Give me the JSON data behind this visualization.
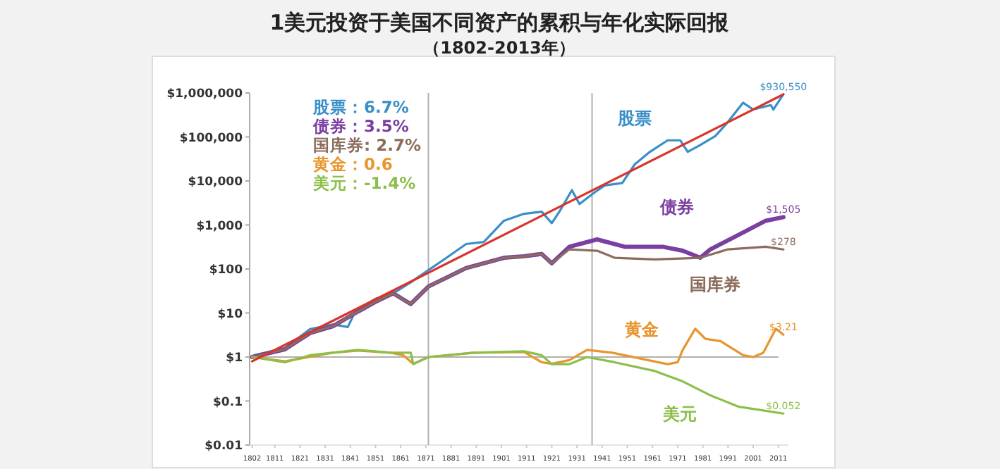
{
  "chart_data": {
    "type": "line",
    "title": "1美元投资于美国不同资产的累积与年化实际回报",
    "subtitle": "（1802-2013年）",
    "log": "y",
    "grid": false,
    "marker": "none",
    "line_style": "solid",
    "xlim": [
      1801,
      2015
    ],
    "ylim": [
      0.01,
      1000000
    ],
    "xticks": [
      1802,
      1811,
      1821,
      1831,
      1841,
      1851,
      1861,
      1871,
      1881,
      1891,
      1901,
      1911,
      1921,
      1931,
      1941,
      1951,
      1961,
      1971,
      1981,
      1991,
      2001,
      2011
    ],
    "yticks": [
      {
        "value": 0.01,
        "label": "$0.01"
      },
      {
        "value": 0.1,
        "label": "$0.1"
      },
      {
        "value": 1,
        "label": "$1"
      },
      {
        "value": 10,
        "label": "$10"
      },
      {
        "value": 100,
        "label": "$100"
      },
      {
        "value": 1000,
        "label": "$1,000"
      },
      {
        "value": 10000,
        "label": "$10,000"
      },
      {
        "value": 100000,
        "label": "$100,000"
      },
      {
        "value": 1000000,
        "label": "$1,000,000"
      }
    ],
    "series": [
      {
        "name": "股票",
        "color": "#3a8fc8",
        "x": [
          1803,
          1815,
          1825,
          1834,
          1840,
          1843,
          1851,
          1858,
          1865,
          1872,
          1879,
          1887,
          1894,
          1902,
          1910,
          1917,
          1921,
          1924,
          1929,
          1932,
          1938,
          1942,
          1949,
          1954,
          1960,
          1967,
          1972,
          1975,
          1980,
          1986,
          1991,
          1997,
          2001,
          2008,
          2009,
          2013
        ],
        "values": [
          1.1,
          1.6,
          4.3,
          5.5,
          4.8,
          11,
          21,
          28,
          50,
          94,
          177,
          370,
          410,
          1250,
          1800,
          2000,
          1100,
          2000,
          6200,
          3000,
          5500,
          7900,
          9000,
          24000,
          46000,
          84000,
          84000,
          46000,
          66000,
          105000,
          220000,
          600000,
          420000,
          530000,
          420000,
          930550
        ]
      },
      {
        "name": "债券",
        "color": "#7a3fa0",
        "x": [
          1802,
          1815,
          1825,
          1834,
          1843,
          1851,
          1858,
          1865,
          1872,
          1887,
          1902,
          1910,
          1917,
          1921,
          1928,
          1939,
          1950,
          1965,
          1973,
          1980,
          1984,
          1995,
          2006,
          2013
        ],
        "values": [
          1,
          1.5,
          3.5,
          5,
          10,
          18,
          28,
          16,
          40,
          105,
          180,
          195,
          220,
          135,
          320,
          470,
          320,
          320,
          260,
          180,
          280,
          590,
          1250,
          1505
        ]
      },
      {
        "name": "国库券",
        "color": "#8b6d5c",
        "x": [
          1802,
          1815,
          1825,
          1834,
          1843,
          1851,
          1858,
          1865,
          1872,
          1887,
          1902,
          1910,
          1917,
          1921,
          1928,
          1939,
          1946,
          1962,
          1980,
          1991,
          2006,
          2013
        ],
        "values": [
          1,
          1.5,
          3.5,
          5,
          10,
          18,
          28,
          16,
          40,
          105,
          180,
          195,
          220,
          135,
          280,
          260,
          180,
          165,
          180,
          280,
          320,
          278
        ]
      },
      {
        "name": "黄金",
        "color": "#e8952e",
        "x": [
          1802,
          1815,
          1834,
          1844,
          1857,
          1862,
          1866,
          1872,
          1890,
          1910,
          1917,
          1921,
          1928,
          1935,
          1945,
          1967,
          1971,
          1973,
          1978,
          1982,
          1988,
          1997,
          2001,
          2005,
          2010,
          2013
        ],
        "values": [
          1,
          0.8,
          1.25,
          1.4,
          1.25,
          1.1,
          0.7,
          1,
          1.25,
          1.3,
          0.76,
          0.7,
          0.85,
          1.45,
          1.25,
          0.69,
          0.76,
          1.45,
          4.4,
          2.6,
          2.3,
          1.1,
          1,
          1.25,
          4.4,
          3.21
        ]
      },
      {
        "name": "美元",
        "color": "#8cbf4a",
        "x": [
          1802,
          1815,
          1825,
          1834,
          1844,
          1857,
          1865,
          1866,
          1872,
          1890,
          1910,
          1917,
          1921,
          1928,
          1935,
          1946,
          1962,
          1973,
          1984,
          1995,
          2013
        ],
        "values": [
          1,
          0.76,
          1.1,
          1.25,
          1.45,
          1.25,
          1.25,
          0.69,
          1,
          1.25,
          1.35,
          1.1,
          0.69,
          0.69,
          1,
          0.76,
          0.48,
          0.28,
          0.135,
          0.075,
          0.052
        ]
      },
      {
        "color": "#d9342b",
        "x": [
          1802,
          2013
        ],
        "values": [
          0.8,
          930550
        ]
      }
    ],
    "ref_lines": [
      {
        "axis": "y",
        "value": 1,
        "color": "#b0b0b0"
      },
      {
        "axis": "x",
        "value": 1872,
        "color": "#b0b0b0"
      },
      {
        "axis": "x",
        "value": 1937,
        "color": "#b0b0b0"
      }
    ],
    "annotations": [
      "股票：6.7%",
      "债券：3.5%",
      "国库券: 2.7%",
      "黄金：0.6",
      "美元：-1.4%",
      "$930,550",
      "$1,505",
      "$278",
      "$3.21",
      "$0.052"
    ]
  }
}
